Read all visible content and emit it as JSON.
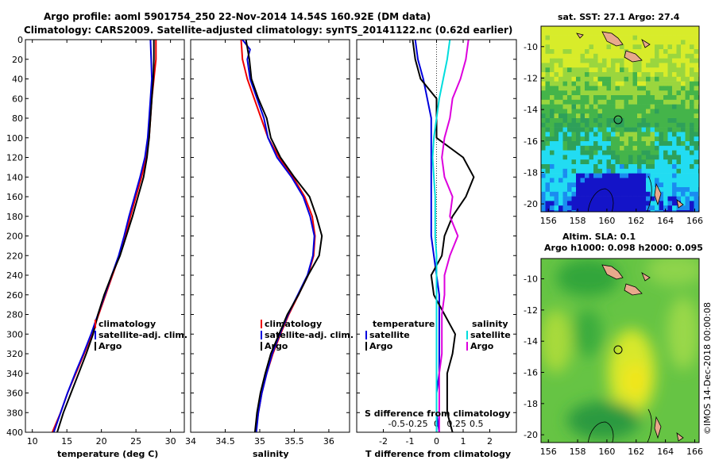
{
  "header": {
    "title_line1": "Argo profile: aoml 5901754_250 22-Nov-2014 14.54S 160.92E (DM data)",
    "title_line2": "Climatology: CARS2009. Satellite-adjusted climatology: synTS_20141122.nc (0.62d earlier)"
  },
  "colors": {
    "climatology": "#ee0000",
    "satellite": "#0000dd",
    "argo": "#000000",
    "sal_satellite": "#00dddd",
    "sal_argo": "#dd00dd"
  },
  "depth_ticks": [
    "0",
    "20",
    "40",
    "60",
    "80",
    "100",
    "120",
    "140",
    "160",
    "180",
    "200",
    "220",
    "240",
    "260",
    "280",
    "300",
    "320",
    "340",
    "360",
    "380",
    "400"
  ],
  "chart_data": [
    {
      "type": "line",
      "name": "temperature-profile",
      "xlabel": "temperature (deg C)",
      "xlim": [
        9,
        32
      ],
      "ylim": [
        0,
        400
      ],
      "x_ticks": [
        "10",
        "15",
        "20",
        "25",
        "30"
      ],
      "legend": [
        "climatology",
        "satellite-adj. clim.",
        "Argo"
      ],
      "series": [
        {
          "name": "climatology",
          "color": "#ee0000",
          "points": [
            [
              27.9,
              0
            ],
            [
              27.9,
              20
            ],
            [
              27.6,
              40
            ],
            [
              27.3,
              60
            ],
            [
              27.1,
              80
            ],
            [
              26.9,
              100
            ],
            [
              26.5,
              120
            ],
            [
              25.8,
              140
            ],
            [
              25.0,
              160
            ],
            [
              24.2,
              180
            ],
            [
              23.5,
              200
            ],
            [
              22.6,
              220
            ],
            [
              21.6,
              240
            ],
            [
              20.6,
              260
            ],
            [
              19.6,
              280
            ],
            [
              18.6,
              300
            ],
            [
              17.5,
              320
            ],
            [
              16.3,
              340
            ],
            [
              15.1,
              360
            ],
            [
              14.1,
              380
            ],
            [
              12.9,
              400
            ]
          ]
        },
        {
          "name": "satellite-adj. clim.",
          "color": "#0000dd",
          "points": [
            [
              27.1,
              0
            ],
            [
              27.2,
              20
            ],
            [
              27.3,
              40
            ],
            [
              27.1,
              60
            ],
            [
              26.9,
              80
            ],
            [
              26.7,
              100
            ],
            [
              26.3,
              120
            ],
            [
              25.6,
              140
            ],
            [
              24.8,
              160
            ],
            [
              24.0,
              180
            ],
            [
              23.3,
              200
            ],
            [
              22.5,
              220
            ],
            [
              21.5,
              240
            ],
            [
              20.5,
              260
            ],
            [
              19.5,
              280
            ],
            [
              18.5,
              300
            ],
            [
              17.4,
              320
            ],
            [
              16.2,
              340
            ],
            [
              15.1,
              360
            ],
            [
              14.1,
              380
            ],
            [
              13.1,
              400
            ]
          ]
        },
        {
          "name": "Argo",
          "color": "#000000",
          "points": [
            [
              27.6,
              0
            ],
            [
              27.6,
              20
            ],
            [
              27.5,
              40
            ],
            [
              27.3,
              60
            ],
            [
              27.1,
              80
            ],
            [
              26.9,
              100
            ],
            [
              26.6,
              120
            ],
            [
              26.1,
              140
            ],
            [
              25.3,
              160
            ],
            [
              24.5,
              180
            ],
            [
              23.6,
              200
            ],
            [
              22.7,
              220
            ],
            [
              21.5,
              240
            ],
            [
              20.4,
              260
            ],
            [
              19.5,
              280
            ],
            [
              18.8,
              300
            ],
            [
              17.8,
              320
            ],
            [
              16.7,
              340
            ],
            [
              15.6,
              360
            ],
            [
              14.5,
              380
            ],
            [
              13.6,
              400
            ]
          ]
        }
      ]
    },
    {
      "type": "line",
      "name": "salinity-profile",
      "xlabel": "salinity",
      "xlim": [
        34,
        36.3
      ],
      "ylim": [
        0,
        400
      ],
      "x_ticks": [
        "34",
        "34.5",
        "35",
        "35.5",
        "36"
      ],
      "legend": [
        "climatology",
        "satellite-adj. clim.",
        "Argo"
      ],
      "series": [
        {
          "name": "climatology",
          "color": "#ee0000",
          "points": [
            [
              34.73,
              0
            ],
            [
              34.75,
              20
            ],
            [
              34.82,
              40
            ],
            [
              34.92,
              60
            ],
            [
              35.02,
              80
            ],
            [
              35.12,
              100
            ],
            [
              35.28,
              120
            ],
            [
              35.48,
              140
            ],
            [
              35.65,
              160
            ],
            [
              35.76,
              180
            ],
            [
              35.8,
              200
            ],
            [
              35.78,
              220
            ],
            [
              35.7,
              240
            ],
            [
              35.56,
              260
            ],
            [
              35.42,
              280
            ],
            [
              35.3,
              300
            ],
            [
              35.19,
              320
            ],
            [
              35.1,
              340
            ],
            [
              35.03,
              360
            ],
            [
              34.98,
              380
            ],
            [
              34.94,
              400
            ]
          ]
        },
        {
          "name": "satellite-adj. clim.",
          "color": "#0000dd",
          "points": [
            [
              34.75,
              0
            ],
            [
              34.86,
              10
            ],
            [
              34.82,
              20
            ],
            [
              34.86,
              40
            ],
            [
              34.96,
              60
            ],
            [
              35.06,
              80
            ],
            [
              35.12,
              100
            ],
            [
              35.25,
              120
            ],
            [
              35.46,
              140
            ],
            [
              35.63,
              160
            ],
            [
              35.73,
              180
            ],
            [
              35.79,
              200
            ],
            [
              35.77,
              220
            ],
            [
              35.69,
              240
            ],
            [
              35.55,
              260
            ],
            [
              35.41,
              280
            ],
            [
              35.29,
              300
            ],
            [
              35.18,
              320
            ],
            [
              35.1,
              340
            ],
            [
              35.03,
              360
            ],
            [
              34.98,
              380
            ],
            [
              34.95,
              400
            ]
          ]
        },
        {
          "name": "Argo",
          "color": "#000000",
          "points": [
            [
              34.8,
              0
            ],
            [
              34.85,
              20
            ],
            [
              34.88,
              40
            ],
            [
              34.98,
              60
            ],
            [
              35.1,
              80
            ],
            [
              35.16,
              100
            ],
            [
              35.3,
              120
            ],
            [
              35.5,
              140
            ],
            [
              35.72,
              160
            ],
            [
              35.82,
              180
            ],
            [
              35.9,
              200
            ],
            [
              35.86,
              220
            ],
            [
              35.7,
              240
            ],
            [
              35.56,
              260
            ],
            [
              35.4,
              280
            ],
            [
              35.28,
              300
            ],
            [
              35.16,
              320
            ],
            [
              35.08,
              340
            ],
            [
              35.01,
              360
            ],
            [
              34.96,
              380
            ],
            [
              34.93,
              400
            ]
          ]
        }
      ]
    },
    {
      "type": "line",
      "name": "difference-profile",
      "xlabel": "T difference from climatology",
      "secondary_xlabel": "S difference from climatology",
      "xlim": [
        -3,
        3
      ],
      "ylim": [
        0,
        400
      ],
      "x_ticks": [
        "-2",
        "-1",
        "0",
        "1",
        "2"
      ],
      "secondary_x_ticks": [
        "-0.5",
        "-0.25",
        "0",
        "0.25",
        "0.5"
      ],
      "legend_temperature_title": "temperature",
      "legend_salinity_title": "salinity",
      "legend_temperature": [
        "satellite",
        "Argo"
      ],
      "legend_salinity": [
        "satellite",
        "Argo"
      ],
      "series": [
        {
          "name": "T satellite",
          "color": "#0000dd",
          "points": [
            [
              -0.8,
              0
            ],
            [
              -0.7,
              20
            ],
            [
              -0.5,
              40
            ],
            [
              -0.35,
              60
            ],
            [
              -0.2,
              80
            ],
            [
              -0.2,
              100
            ],
            [
              -0.2,
              120
            ],
            [
              -0.2,
              140
            ],
            [
              -0.2,
              160
            ],
            [
              -0.2,
              180
            ],
            [
              -0.2,
              200
            ],
            [
              -0.1,
              220
            ],
            [
              0.0,
              240
            ],
            [
              0.1,
              260
            ],
            [
              0.1,
              280
            ],
            [
              0.1,
              300
            ],
            [
              0.1,
              320
            ],
            [
              0.1,
              340
            ],
            [
              0.0,
              360
            ],
            [
              0.0,
              380
            ],
            [
              0.1,
              400
            ]
          ]
        },
        {
          "name": "T Argo",
          "color": "#000000",
          "points": [
            [
              -0.9,
              0
            ],
            [
              -0.8,
              20
            ],
            [
              -0.6,
              40
            ],
            [
              0.0,
              60
            ],
            [
              0.0,
              80
            ],
            [
              0.0,
              100
            ],
            [
              1.0,
              120
            ],
            [
              1.4,
              140
            ],
            [
              1.1,
              160
            ],
            [
              0.6,
              180
            ],
            [
              0.3,
              200
            ],
            [
              0.2,
              220
            ],
            [
              -0.2,
              240
            ],
            [
              -0.1,
              260
            ],
            [
              0.3,
              280
            ],
            [
              0.7,
              300
            ],
            [
              0.6,
              320
            ],
            [
              0.4,
              340
            ],
            [
              0.4,
              360
            ],
            [
              0.4,
              380
            ],
            [
              0.6,
              400
            ]
          ]
        },
        {
          "name": "S satellite",
          "color": "#00dddd",
          "points": [
            [
              0.5,
              0
            ],
            [
              0.4,
              20
            ],
            [
              0.25,
              40
            ],
            [
              0.1,
              60
            ],
            [
              0.0,
              80
            ],
            [
              -0.1,
              100
            ],
            [
              -0.15,
              120
            ],
            [
              -0.1,
              140
            ],
            [
              -0.05,
              160
            ],
            [
              -0.05,
              180
            ],
            [
              -0.05,
              200
            ],
            [
              0.0,
              220
            ],
            [
              0.0,
              240
            ],
            [
              0.0,
              260
            ],
            [
              0.0,
              280
            ],
            [
              0.0,
              300
            ],
            [
              0.0,
              320
            ],
            [
              0.0,
              340
            ],
            [
              0.0,
              360
            ],
            [
              0.0,
              380
            ],
            [
              0.0,
              400
            ]
          ]
        },
        {
          "name": "S Argo",
          "color": "#dd00dd",
          "points": [
            [
              1.2,
              0
            ],
            [
              1.1,
              20
            ],
            [
              0.9,
              40
            ],
            [
              0.6,
              60
            ],
            [
              0.5,
              80
            ],
            [
              0.3,
              100
            ],
            [
              0.2,
              120
            ],
            [
              0.3,
              140
            ],
            [
              0.6,
              160
            ],
            [
              0.5,
              180
            ],
            [
              0.8,
              200
            ],
            [
              0.5,
              220
            ],
            [
              0.3,
              240
            ],
            [
              0.3,
              260
            ],
            [
              0.2,
              280
            ],
            [
              0.2,
              300
            ],
            [
              0.2,
              320
            ],
            [
              0.1,
              340
            ],
            [
              0.1,
              360
            ],
            [
              0.1,
              380
            ],
            [
              0.1,
              400
            ]
          ]
        }
      ]
    },
    {
      "type": "heatmap",
      "name": "sst-map",
      "title": "sat. SST: 27.1 Argo: 27.4",
      "x_ticks": [
        "156",
        "158",
        "160",
        "162",
        "164",
        "166"
      ],
      "y_ticks": [
        "-10",
        "-12",
        "-14",
        "-16",
        "-18",
        "-20"
      ],
      "xlim": [
        155.5,
        166.3
      ],
      "ylim": [
        -20.5,
        -8.7
      ],
      "profile_location": [
        160.92,
        -14.54
      ]
    },
    {
      "type": "heatmap",
      "name": "sla-map",
      "title_line1": "Altim. SLA: 0.1",
      "title_line2": "Argo h1000: 0.098 h2000: 0.095",
      "x_ticks": [
        "156",
        "158",
        "160",
        "162",
        "164",
        "166"
      ],
      "y_ticks": [
        "-10",
        "-12",
        "-14",
        "-16",
        "-18",
        "-20"
      ],
      "xlim": [
        155.5,
        166.3
      ],
      "ylim": [
        -20.5,
        -8.7
      ],
      "profile_location": [
        160.92,
        -14.54
      ]
    }
  ],
  "footer": {
    "stamp": "©IMOS 14-Dec-2018 00:00:08"
  }
}
